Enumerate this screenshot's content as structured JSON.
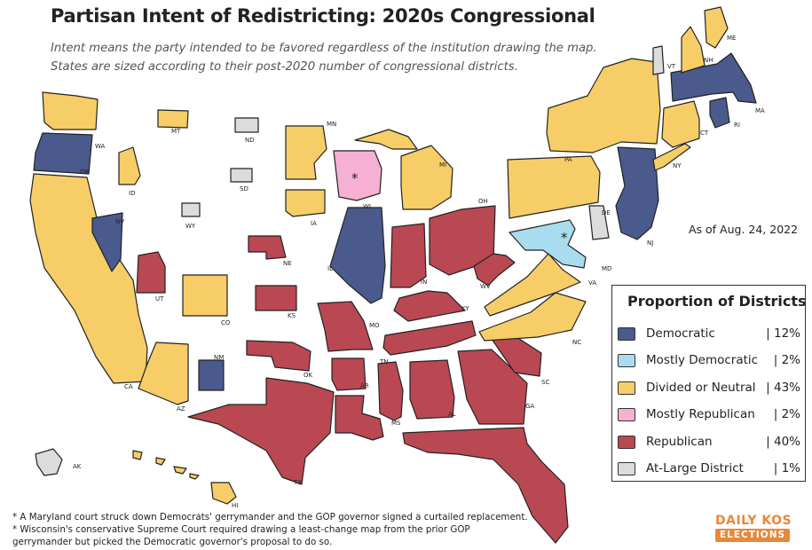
{
  "title": "Partisan Intent of Redistricting: 2020s Congressional",
  "subtitle_line1": "Intent means the party intended to be favored regardless of the institution drawing the map.",
  "subtitle_line2": "States are sized according to their post-2020 number of congressional districts.",
  "as_of": "As of Aug. 24, 2022",
  "colors": {
    "dem": "#4a5a8c",
    "mostly_dem": "#a8dcee",
    "neutral": "#f7cd68",
    "mostly_rep": "#f6b0d4",
    "rep": "#b94853",
    "at_large": "#dcdcdc",
    "outline": "#222222"
  },
  "legend": {
    "title": "Proportion of Districts",
    "items": [
      {
        "label": "Democratic",
        "pct": "| 12%",
        "color": "#4a5a8c"
      },
      {
        "label": "Mostly Democratic",
        "pct": "|  2%",
        "color": "#a8dcee"
      },
      {
        "label": "Divided or Neutral",
        "pct": "| 43%",
        "color": "#f7cd68"
      },
      {
        "label": "Mostly Republican",
        "pct": "|  2%",
        "color": "#f6b0d4"
      },
      {
        "label": "Republican",
        "pct": "| 40%",
        "color": "#b94853"
      },
      {
        "label": "At-Large District",
        "pct": "|  1%",
        "color": "#dcdcdc"
      }
    ]
  },
  "states": [
    {
      "abbr": "WA",
      "cat": "neutral"
    },
    {
      "abbr": "OR",
      "cat": "dem"
    },
    {
      "abbr": "CA",
      "cat": "neutral"
    },
    {
      "abbr": "NV",
      "cat": "dem"
    },
    {
      "abbr": "ID",
      "cat": "neutral"
    },
    {
      "abbr": "MT",
      "cat": "neutral"
    },
    {
      "abbr": "WY",
      "cat": "at_large"
    },
    {
      "abbr": "UT",
      "cat": "rep"
    },
    {
      "abbr": "AZ",
      "cat": "neutral"
    },
    {
      "abbr": "CO",
      "cat": "neutral"
    },
    {
      "abbr": "NM",
      "cat": "dem"
    },
    {
      "abbr": "ND",
      "cat": "at_large"
    },
    {
      "abbr": "SD",
      "cat": "at_large"
    },
    {
      "abbr": "NE",
      "cat": "rep"
    },
    {
      "abbr": "KS",
      "cat": "rep"
    },
    {
      "abbr": "OK",
      "cat": "rep"
    },
    {
      "abbr": "TX",
      "cat": "rep"
    },
    {
      "abbr": "MN",
      "cat": "neutral"
    },
    {
      "abbr": "IA",
      "cat": "neutral"
    },
    {
      "abbr": "MO",
      "cat": "rep"
    },
    {
      "abbr": "AR",
      "cat": "rep"
    },
    {
      "abbr": "LA",
      "cat": "rep"
    },
    {
      "abbr": "WI",
      "cat": "mostly_rep"
    },
    {
      "abbr": "IL",
      "cat": "dem"
    },
    {
      "abbr": "MI",
      "cat": "neutral"
    },
    {
      "abbr": "IN",
      "cat": "rep"
    },
    {
      "abbr": "OH",
      "cat": "rep"
    },
    {
      "abbr": "KY",
      "cat": "rep"
    },
    {
      "abbr": "TN",
      "cat": "rep"
    },
    {
      "abbr": "MS",
      "cat": "rep"
    },
    {
      "abbr": "AL",
      "cat": "rep"
    },
    {
      "abbr": "GA",
      "cat": "rep"
    },
    {
      "abbr": "FL",
      "cat": "rep"
    },
    {
      "abbr": "SC",
      "cat": "rep"
    },
    {
      "abbr": "NC",
      "cat": "neutral"
    },
    {
      "abbr": "VA",
      "cat": "neutral"
    },
    {
      "abbr": "WV",
      "cat": "rep"
    },
    {
      "abbr": "MD",
      "cat": "mostly_dem"
    },
    {
      "abbr": "DE",
      "cat": "at_large"
    },
    {
      "abbr": "PA",
      "cat": "neutral"
    },
    {
      "abbr": "NJ",
      "cat": "dem"
    },
    {
      "abbr": "NY",
      "cat": "neutral"
    },
    {
      "abbr": "CT",
      "cat": "neutral"
    },
    {
      "abbr": "RI",
      "cat": "dem"
    },
    {
      "abbr": "MA",
      "cat": "dem"
    },
    {
      "abbr": "VT",
      "cat": "at_large"
    },
    {
      "abbr": "NH",
      "cat": "neutral"
    },
    {
      "abbr": "ME",
      "cat": "neutral"
    },
    {
      "abbr": "AK",
      "cat": "at_large"
    },
    {
      "abbr": "HI",
      "cat": "neutral"
    }
  ],
  "asterisk": "*",
  "footnote1": "* A Maryland court struck down Democrats' gerrymander and the GOP governor signed a curtailed replacement.",
  "footnote2": "* Wisconsin's conservative Supreme Court required drawing a least-change map from the prior GOP",
  "footnote3": "gerrymander but picked the Democratic governor's proposal to do so.",
  "logo_line1": "DAILY KOS",
  "logo_line2": "ELECTIONS"
}
